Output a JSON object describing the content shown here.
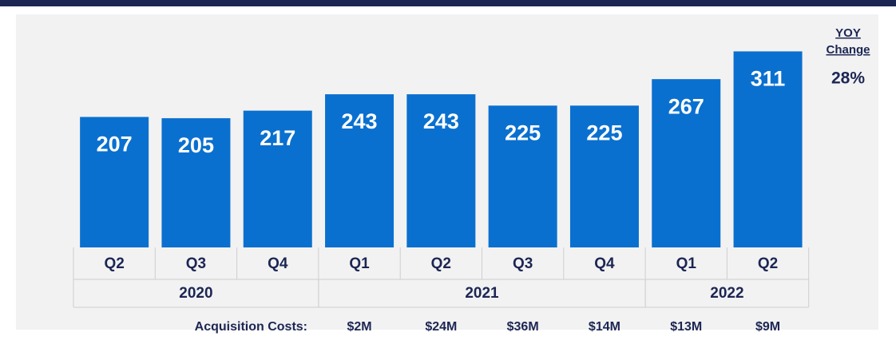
{
  "chart_data": {
    "type": "bar",
    "categories": [
      "Q2",
      "Q3",
      "Q4",
      "Q1",
      "Q2",
      "Q3",
      "Q4",
      "Q1",
      "Q2"
    ],
    "years": [
      "2020",
      "2021",
      "2022"
    ],
    "values": [
      207,
      205,
      217,
      243,
      243,
      225,
      225,
      267,
      311
    ],
    "color": "#0a70cf",
    "ylim": [
      0,
      390
    ],
    "annotation": {
      "title": "YOY",
      "subtitle": "Change",
      "value": "28%"
    },
    "acquisition_costs": {
      "label": "Acquisition Costs:",
      "values": [
        "$2M",
        "$24M",
        "$36M",
        "$14M",
        "$13M",
        "$9M"
      ]
    }
  }
}
